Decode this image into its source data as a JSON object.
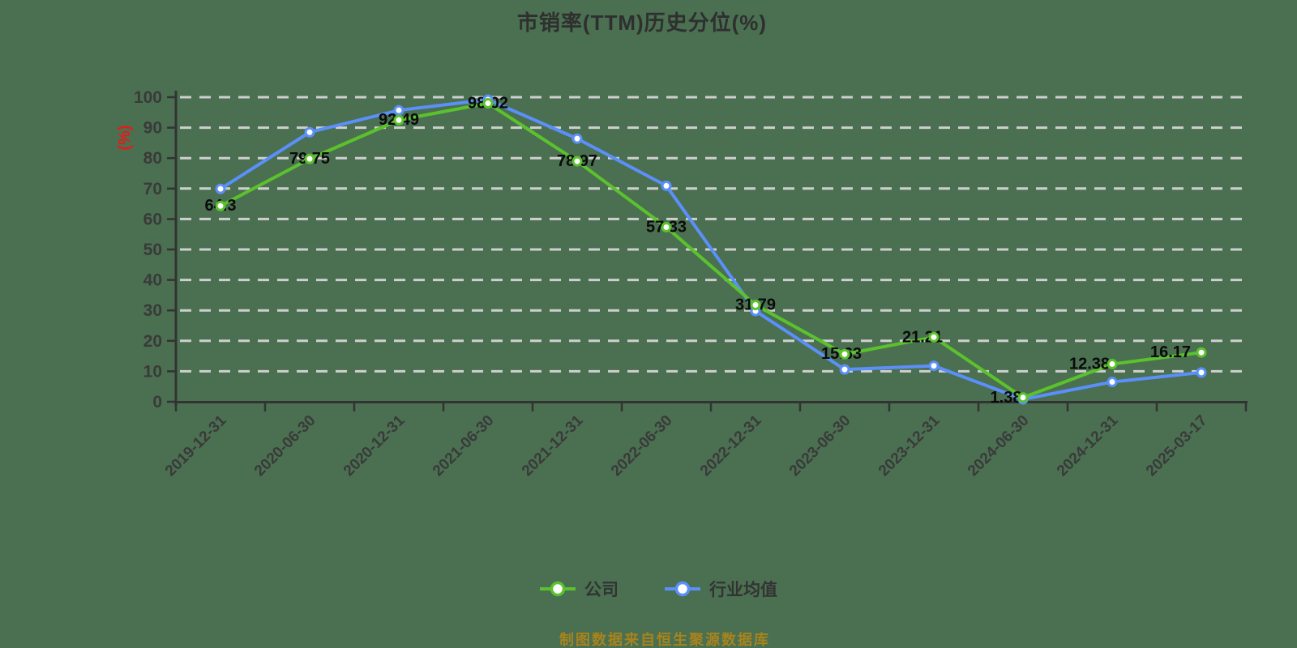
{
  "title": "市销率(TTM)历史分位(%)",
  "y_axis_unit": "(%)",
  "footer": "制图数据来自恒生聚源数据库",
  "colors": {
    "background": "#4A7051",
    "gridline": "#CFCFCF",
    "axis": "#333333",
    "tick_label": "#3A3A3A",
    "data_label": "#0A0A0A",
    "title": "#2F2F2F",
    "y_axis_unit": "#E51B1B",
    "footer": "#A8831D",
    "marker_fill": "#FFFFFF"
  },
  "legend": {
    "items": [
      {
        "label": "公司",
        "color": "#5BC22D"
      },
      {
        "label": "行业均值",
        "color": "#5B8FF9"
      }
    ]
  },
  "chart_data": {
    "type": "line",
    "title": "市销率(TTM)历史分位(%)",
    "xlabel": "",
    "ylabel": "(%)",
    "ylim": [
      0,
      100
    ],
    "y_ticks": [
      0,
      10,
      20,
      30,
      40,
      50,
      60,
      70,
      80,
      90,
      100
    ],
    "grid": "horizontal-dashed",
    "legend_position": "bottom",
    "categories": [
      "2019-12-31",
      "2020-06-30",
      "2020-12-31",
      "2021-06-30",
      "2021-12-31",
      "2022-06-30",
      "2022-12-31",
      "2023-06-30",
      "2023-12-31",
      "2024-06-30",
      "2024-12-31",
      "2025-03-17"
    ],
    "series": [
      {
        "name": "公司",
        "color": "#5BC22D",
        "show_labels": true,
        "values": [
          64.3,
          79.75,
          92.49,
          98.02,
          78.97,
          57.33,
          31.79,
          15.63,
          21.21,
          1.38,
          12.38,
          16.17
        ]
      },
      {
        "name": "行业均值",
        "color": "#5B8FF9",
        "show_labels": false,
        "values": [
          69.9,
          88.5,
          95.7,
          99.2,
          86.4,
          70.9,
          29.8,
          10.6,
          11.8,
          0.8,
          6.5,
          9.6
        ]
      }
    ]
  }
}
